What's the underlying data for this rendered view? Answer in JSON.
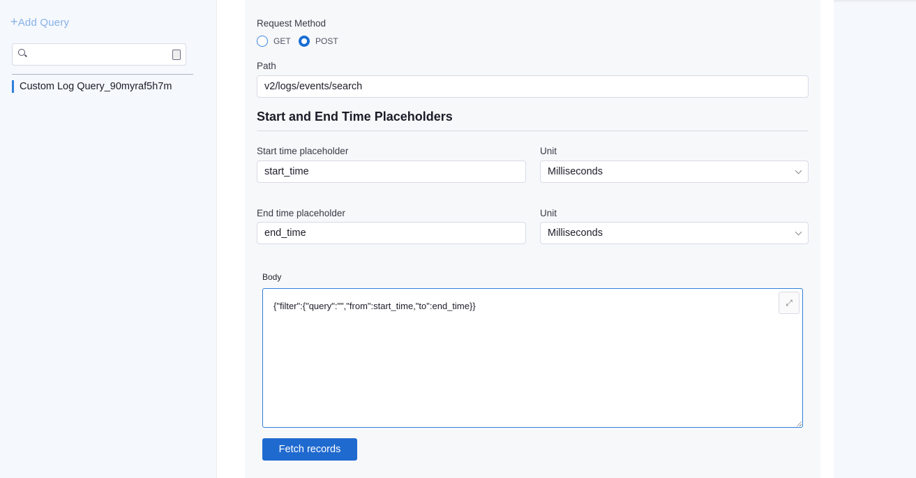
{
  "sidebar": {
    "add_query_icon": "+",
    "add_query_label": "Add Query",
    "search": {
      "value": "",
      "placeholder": ""
    },
    "queries": [
      {
        "label": "Custom Log Query_90myraf5h7m",
        "selected": true
      }
    ],
    "accent": "#2f7fdb"
  },
  "form": {
    "request_method_label": "Request Method",
    "methods": [
      {
        "label": "GET",
        "selected": false
      },
      {
        "label": "POST",
        "selected": true
      }
    ],
    "path_label": "Path",
    "path_value": "v2/logs/events/search",
    "placeholders_heading": "Start and End Time Placeholders",
    "start_label": "Start time placeholder",
    "start_value": "start_time",
    "start_unit_label": "Unit",
    "start_unit_value": "Milliseconds",
    "end_label": "End time placeholder",
    "end_value": "end_time",
    "end_unit_label": "Unit",
    "end_unit_value": "Milliseconds",
    "body_label": "Body",
    "body_value": "{\"filter\":{\"query\":\"\",\"from\":start_time,\"to\":end_time}}",
    "fetch_label": "Fetch records",
    "primary_color": "#1f6acf"
  }
}
